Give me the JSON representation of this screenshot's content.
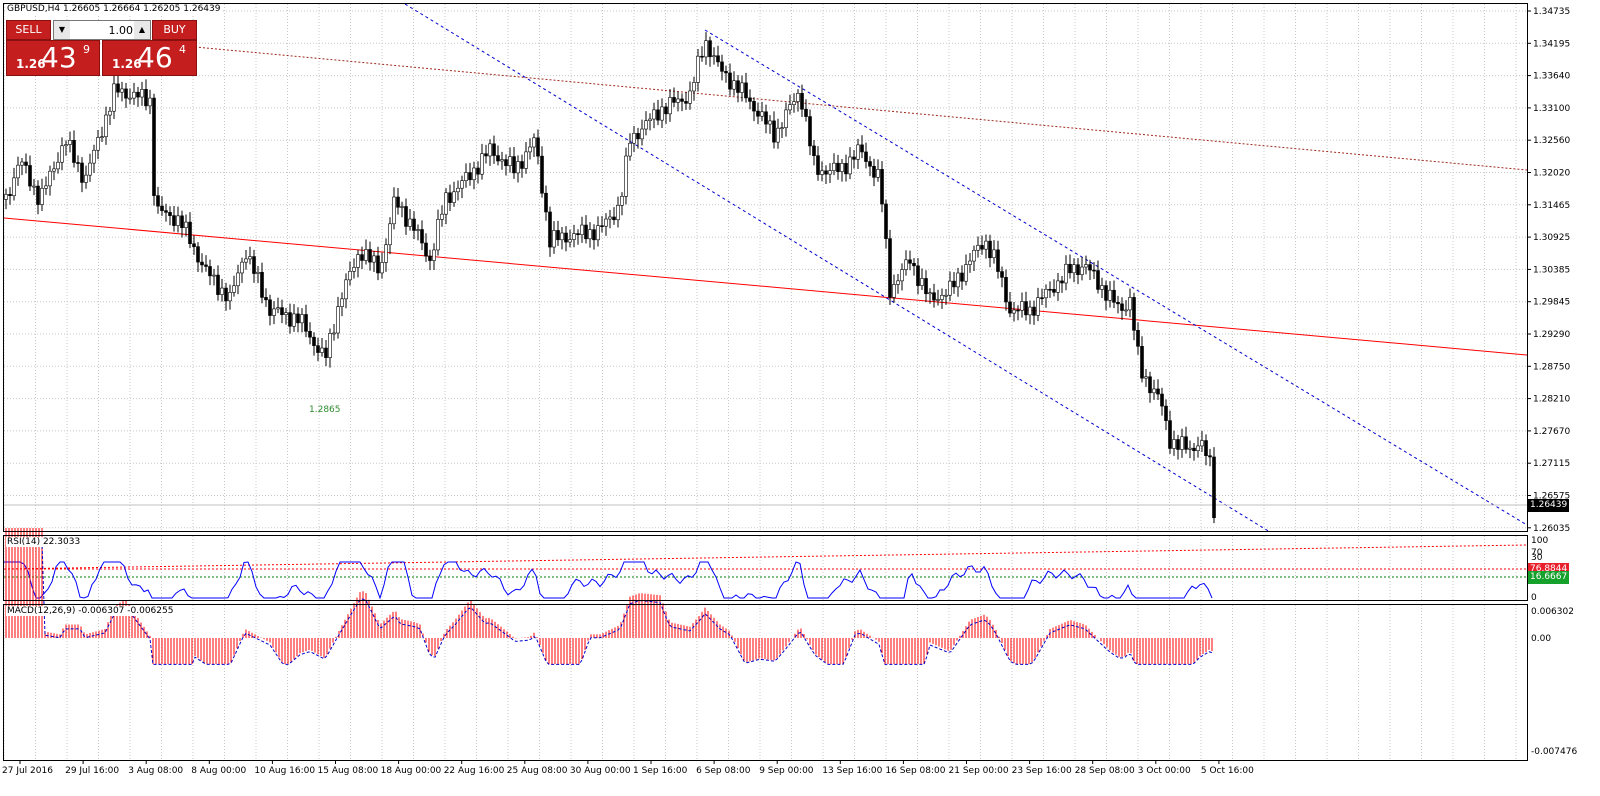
{
  "symbol_label": "GBPUSD,H4  1.26605 1.26664 1.26205 1.26439",
  "trade_panel": {
    "sell_label": "SELL",
    "buy_label": "BUY",
    "lot_value": "1.00",
    "sell_price": {
      "prefix": "1.26",
      "big": "43",
      "super": "9"
    },
    "buy_price": {
      "prefix": "1.26",
      "big": "46",
      "super": "4"
    }
  },
  "colors": {
    "accent_red": "#c41e1e",
    "trend_red": "#ff0000",
    "channel_blue": "#0000cc",
    "rsi_line": "#0000ff"
  },
  "price_axis": {
    "labels": [
      "1.34735",
      "1.34195",
      "1.33640",
      "1.33100",
      "1.32560",
      "1.32020",
      "1.31465",
      "1.30925",
      "1.30385",
      "1.29845",
      "1.29290",
      "1.28750",
      "1.28210",
      "1.27670",
      "1.27115",
      "1.26575",
      "1.26035"
    ],
    "current_price": "1.26439"
  },
  "low_marker": "1.2865",
  "rsi": {
    "title": "RSI(14) 22.3033",
    "axis_labels": [
      "100",
      "70",
      "30",
      "0"
    ],
    "level_high": "76.8844",
    "level_low": "16.6667"
  },
  "macd": {
    "title": "MACD(12,26,9) -0.006307 -0.006255",
    "axis_labels": [
      "0.006302",
      "0.00",
      "-0.007476"
    ]
  },
  "time_axis": [
    "27 Jul 2016",
    "29 Jul 16:00",
    "3 Aug 08:00",
    "8 Aug 00:00",
    "10 Aug 16:00",
    "15 Aug 08:00",
    "18 Aug 00:00",
    "22 Aug 16:00",
    "25 Aug 08:00",
    "30 Aug 00:00",
    "1 Sep 16:00",
    "6 Sep 08:00",
    "9 Sep 00:00",
    "13 Sep 16:00",
    "16 Sep 08:00",
    "21 Sep 00:00",
    "23 Sep 16:00",
    "28 Sep 08:00",
    "3 Oct 00:00",
    "5 Oct 16:00"
  ]
}
